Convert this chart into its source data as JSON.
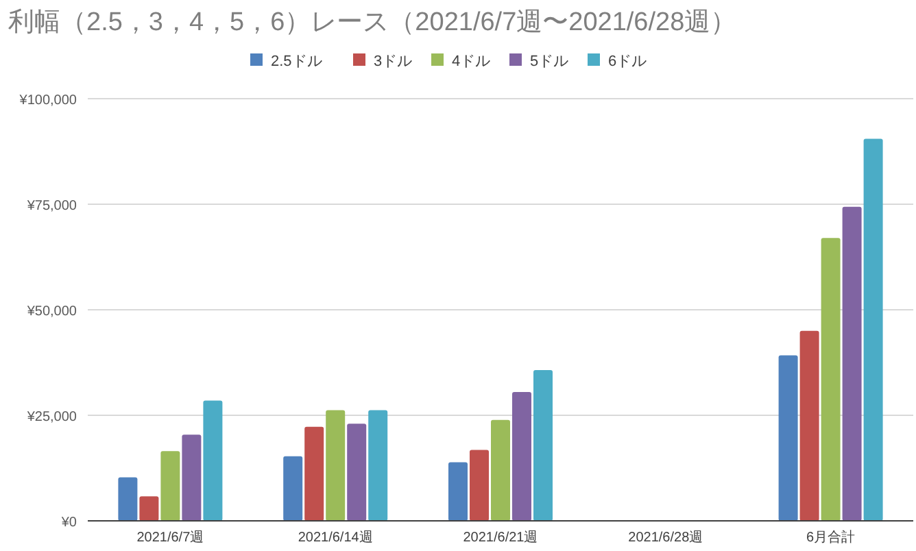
{
  "chart_data": {
    "type": "bar",
    "title": "利幅（2.5，3，4，5，6）レース（2021/6/7週〜2021/6/28週）",
    "categories": [
      "2021/6/7週",
      "2021/6/14週",
      "2021/6/21週",
      "2021/6/28週",
      "6月合計"
    ],
    "series": [
      {
        "name": "2.5ドル",
        "color": "#4f81bd",
        "values": [
          10300,
          15300,
          13900,
          0,
          39200
        ]
      },
      {
        "name": "3ドル",
        "color": "#c0504d",
        "values": [
          5800,
          22300,
          16800,
          0,
          45000
        ]
      },
      {
        "name": "4ドル",
        "color": "#9bbb59",
        "values": [
          16500,
          26200,
          23900,
          0,
          67000
        ]
      },
      {
        "name": "5ドル",
        "color": "#8064a2",
        "values": [
          20400,
          23000,
          30500,
          0,
          74400
        ]
      },
      {
        "name": "6ドル",
        "color": "#4bacc6",
        "values": [
          28500,
          26200,
          35700,
          0,
          90500
        ]
      }
    ],
    "ylim": [
      0,
      100000
    ],
    "yticks": [
      {
        "value": 0,
        "label": "¥0"
      },
      {
        "value": 25000,
        "label": "¥25,000"
      },
      {
        "value": 50000,
        "label": "¥50,000"
      },
      {
        "value": 75000,
        "label": "¥75,000"
      },
      {
        "value": 100000,
        "label": "¥100,000"
      }
    ],
    "grid": "y",
    "legend": "top"
  }
}
